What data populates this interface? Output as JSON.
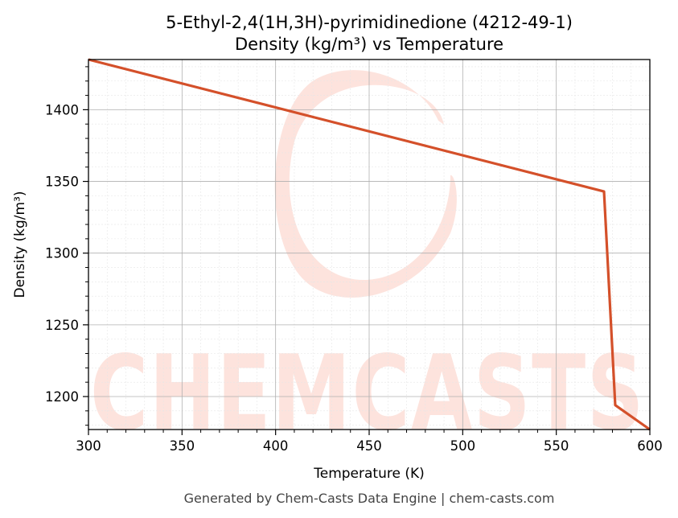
{
  "chart_data": {
    "type": "line",
    "title": "5-Ethyl-2,4(1H,3H)-pyrimidinedione (4212-49-1)",
    "subtitle": "Density (kg/m³) vs Temperature",
    "xlabel": "Temperature (K)",
    "ylabel": "Density (kg/m³)",
    "xlim": [
      300,
      600
    ],
    "ylim": [
      1177,
      1435
    ],
    "xticks": [
      300,
      350,
      400,
      450,
      500,
      550,
      600
    ],
    "yticks": [
      1200,
      1250,
      1300,
      1350,
      1400
    ],
    "grid": true,
    "series": [
      {
        "color": "#d4502a",
        "x": [
          300,
          575.5,
          581.5,
          600
        ],
        "y": [
          1435,
          1343,
          1194,
          1177
        ]
      }
    ]
  },
  "watermark": {
    "text": "CHEMCASTS",
    "color": "#fde3dd"
  },
  "footer": "Generated by Chem-Casts Data Engine | chem-casts.com"
}
